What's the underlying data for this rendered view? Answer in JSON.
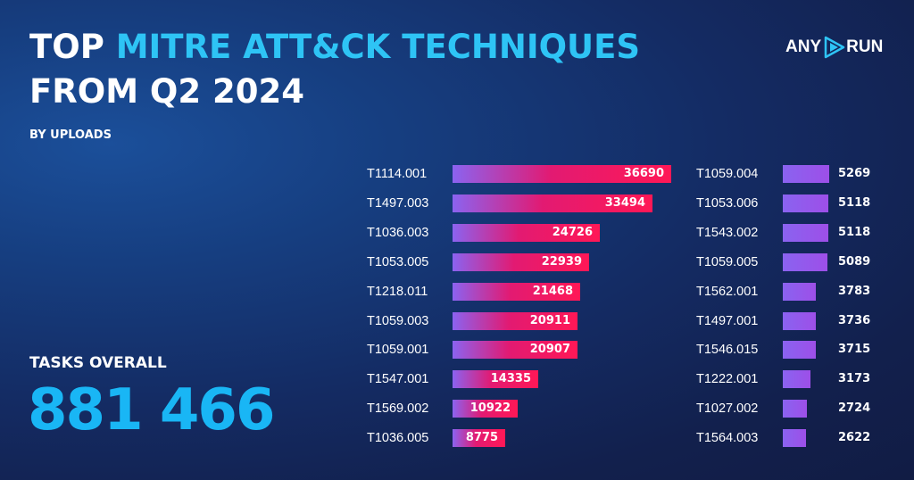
{
  "header": {
    "title_line1_white": "TOP ",
    "title_line1_cyan": "MITRE ATT&CK TECHNIQUES",
    "title_line2": "FROM Q2 2024",
    "subtitle": "BY UPLOADS"
  },
  "logo": {
    "left_text": "ANY",
    "right_text": "RUN",
    "icon": "play-triangle-icon"
  },
  "summary": {
    "label": "TASKS OVERALL",
    "value": "881 466"
  },
  "colors": {
    "accent_cyan": "#2ec4f5",
    "bar_pink": "#ff1856",
    "bar_purple": "#8a63f0",
    "background": "#142b63"
  },
  "chart_data": [
    {
      "type": "bar",
      "orientation": "horizontal",
      "categories": [
        "T1114.001",
        "T1497.003",
        "T1036.003",
        "T1053.005",
        "T1218.011",
        "T1059.003",
        "T1059.001",
        "T1547.001",
        "T1569.002",
        "T1036.005"
      ],
      "values": [
        36690,
        33494,
        24726,
        22939,
        21468,
        20911,
        20907,
        14335,
        10922,
        8775
      ],
      "value_labels": [
        "36690",
        "33494",
        "24726",
        "22939",
        "21468",
        "20911",
        "20907",
        "14335",
        "10922",
        "8775"
      ],
      "xlim": [
        0,
        36690
      ]
    },
    {
      "type": "bar",
      "orientation": "horizontal",
      "categories": [
        "T1059.004",
        "T1053.006",
        "T1543.002",
        "T1059.005",
        "T1562.001",
        "T1497.001",
        "T1546.015",
        "T1222.001",
        "T1027.002",
        "T1564.003"
      ],
      "values": [
        5269,
        5118,
        5118,
        5089,
        3783,
        3736,
        3715,
        3173,
        2724,
        2622
      ],
      "value_labels": [
        "5269",
        "5118",
        "5118",
        "5089",
        "3783",
        "3736",
        "3715",
        "3173",
        "2724",
        "2622"
      ],
      "xlim": [
        0,
        5269
      ]
    }
  ]
}
